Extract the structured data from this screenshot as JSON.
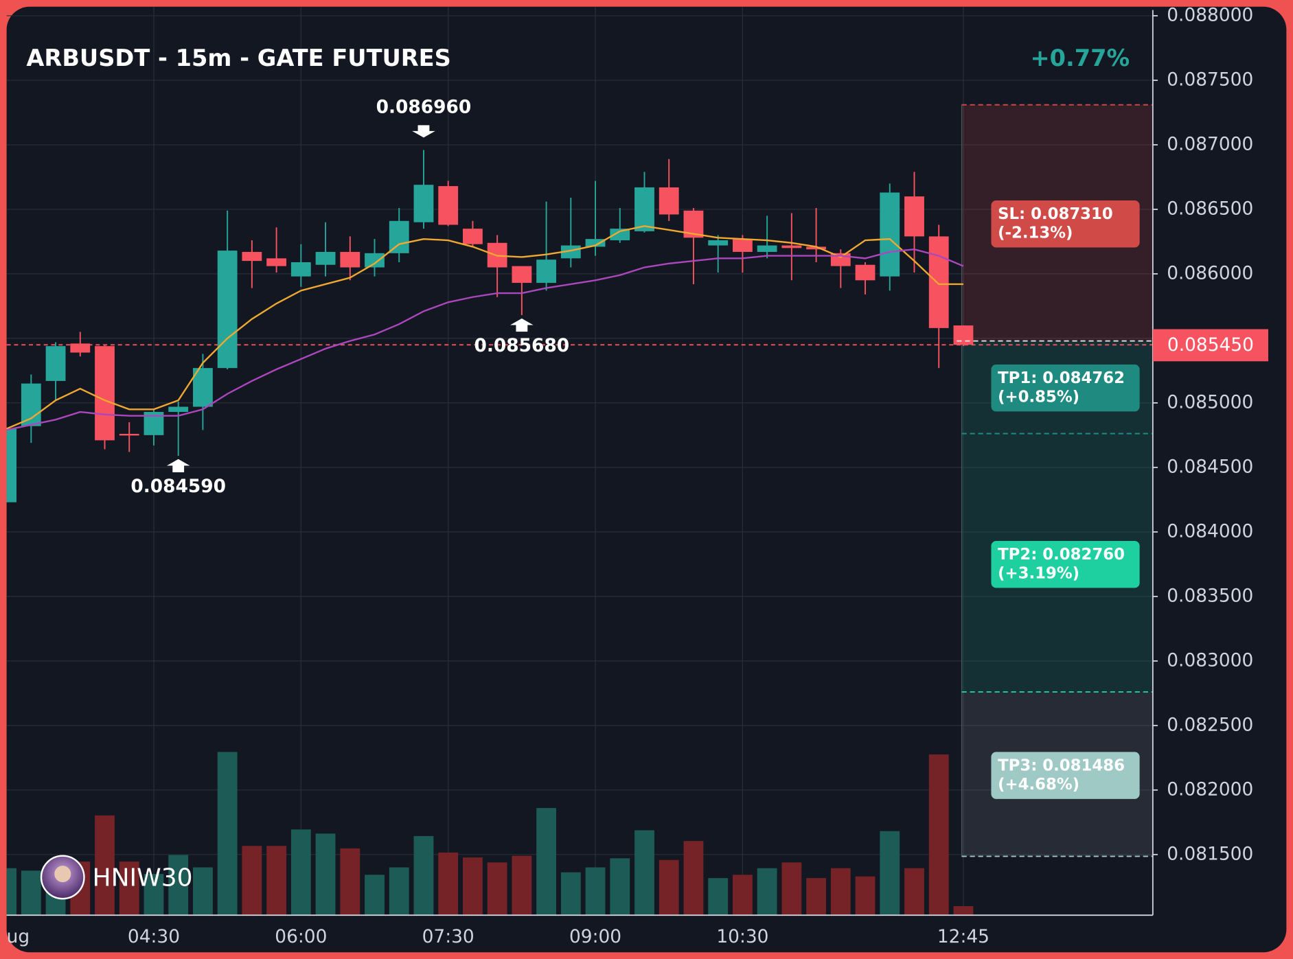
{
  "chart_data": {
    "type": "candlestick",
    "title": "ARBUSDT - 15m - GATE FUTURES",
    "change": "+0.77%",
    "categories": [
      "ug",
      null,
      null,
      null,
      null,
      null,
      "04:30",
      null,
      null,
      null,
      null,
      null,
      "06:00",
      null,
      null,
      null,
      null,
      null,
      "07:30",
      null,
      null,
      null,
      null,
      null,
      "09:00",
      null,
      null,
      null,
      null,
      null,
      "10:30",
      null,
      null,
      null,
      null,
      null,
      null,
      null,
      null,
      "12:45"
    ],
    "open": [
      0.08423,
      0.08482,
      0.08517,
      0.08546,
      0.08544,
      0.08476,
      0.08475,
      0.08493,
      0.08497,
      0.08527,
      0.08617,
      0.08612,
      0.08598,
      0.08607,
      0.08617,
      0.08605,
      0.08616,
      0.0864,
      0.08668,
      0.08635,
      0.08624,
      0.08606,
      0.08593,
      0.08612,
      0.08621,
      0.08626,
      0.08633,
      0.08667,
      0.08649,
      0.08622,
      0.08627,
      0.08617,
      0.08622,
      0.08621,
      0.08616,
      0.08607,
      0.08598,
      0.0866,
      0.08629,
      0.0856
    ],
    "high": [
      0.0848,
      0.08522,
      0.08547,
      0.08555,
      0.08545,
      0.08485,
      0.08495,
      0.08501,
      0.08538,
      0.08649,
      0.08626,
      0.08636,
      0.08623,
      0.0864,
      0.08629,
      0.08627,
      0.08651,
      0.08696,
      0.08672,
      0.08641,
      0.0863,
      0.08606,
      0.08656,
      0.08659,
      0.08672,
      0.08651,
      0.08679,
      0.08689,
      0.08651,
      0.0863,
      0.0863,
      0.08645,
      0.08647,
      0.08651,
      0.08619,
      0.08609,
      0.0867,
      0.08679,
      0.08638,
      0.0856
    ],
    "low": [
      0.08423,
      0.08469,
      0.08502,
      0.08536,
      0.08464,
      0.08462,
      0.08467,
      0.08459,
      0.08479,
      0.08526,
      0.08589,
      0.08601,
      0.0859,
      0.08598,
      0.08595,
      0.08598,
      0.08609,
      0.08635,
      0.08637,
      0.08621,
      0.08582,
      0.08568,
      0.08587,
      0.08605,
      0.08614,
      0.08624,
      0.08632,
      0.08641,
      0.08592,
      0.08601,
      0.08601,
      0.08612,
      0.08595,
      0.08609,
      0.08589,
      0.08584,
      0.08587,
      0.08601,
      0.08527,
      0.08544
    ],
    "close": [
      0.0848,
      0.08515,
      0.08544,
      0.08539,
      0.08471,
      0.08475,
      0.08493,
      0.08497,
      0.08527,
      0.08618,
      0.0861,
      0.08606,
      0.08609,
      0.08617,
      0.08605,
      0.08616,
      0.08641,
      0.08669,
      0.08638,
      0.08623,
      0.08605,
      0.08593,
      0.08611,
      0.08622,
      0.08627,
      0.08635,
      0.08667,
      0.08646,
      0.08628,
      0.08626,
      0.08617,
      0.08622,
      0.0862,
      0.08619,
      0.08606,
      0.08595,
      0.08663,
      0.08629,
      0.08558,
      0.08545
    ],
    "volume": [
      57,
      54,
      58,
      65,
      121,
      65,
      50,
      73,
      58,
      198,
      84,
      84,
      104,
      99,
      81,
      49,
      58,
      96,
      76,
      70,
      64,
      72,
      130,
      52,
      58,
      69,
      103,
      67,
      90,
      45,
      49,
      57,
      64,
      45,
      57,
      47,
      102,
      57,
      195,
      11
    ],
    "up_color": "#26a69a",
    "down_color": "#f7525f",
    "volume_up_color": "#1d5c56",
    "volume_down_color": "#752326",
    "lines": [
      {
        "color": "#f0a830",
        "values": [
          0.0848,
          0.08488,
          0.08502,
          0.08511,
          0.08502,
          0.08495,
          0.08495,
          0.08502,
          0.08531,
          0.0855,
          0.08565,
          0.08577,
          0.08587,
          0.08592,
          0.08597,
          0.08608,
          0.08623,
          0.08627,
          0.08626,
          0.08621,
          0.08614,
          0.08613,
          0.08615,
          0.08618,
          0.08622,
          0.08633,
          0.08637,
          0.08634,
          0.08631,
          0.08628,
          0.08627,
          0.08626,
          0.08624,
          0.08621,
          0.08613,
          0.08626,
          0.08627,
          0.0861,
          0.08592,
          0.08592
        ]
      },
      {
        "color": "#ab47bc",
        "values": [
          0.08479,
          0.08483,
          0.08487,
          0.08493,
          0.08491,
          0.0849,
          0.0849,
          0.0849,
          0.08495,
          0.08507,
          0.08517,
          0.08526,
          0.08534,
          0.08542,
          0.08548,
          0.08553,
          0.08561,
          0.08571,
          0.08578,
          0.08582,
          0.08585,
          0.08585,
          0.08589,
          0.08592,
          0.08595,
          0.08599,
          0.08605,
          0.08608,
          0.0861,
          0.08612,
          0.08612,
          0.08614,
          0.08614,
          0.08614,
          0.08614,
          0.08612,
          0.08617,
          0.08619,
          0.08614,
          0.08606
        ]
      }
    ],
    "ylim": [
      0.08103,
      0.08807
    ],
    "yticks": [
      {
        "value": 0.088,
        "label": "0.088000"
      },
      {
        "value": 0.0875,
        "label": "0.087500"
      },
      {
        "value": 0.087,
        "label": "0.087000"
      },
      {
        "value": 0.0865,
        "label": "0.086500"
      },
      {
        "value": 0.086,
        "label": "0.086000"
      },
      {
        "value": 0.0855,
        "label": "0.085500"
      },
      {
        "value": 0.085,
        "label": "0.085000"
      },
      {
        "value": 0.0845,
        "label": "0.084500"
      },
      {
        "value": 0.084,
        "label": "0.084000"
      },
      {
        "value": 0.0835,
        "label": "0.083500"
      },
      {
        "value": 0.083,
        "label": "0.083000"
      },
      {
        "value": 0.0825,
        "label": "0.082500"
      },
      {
        "value": 0.082,
        "label": "0.082000"
      },
      {
        "value": 0.0815,
        "label": "0.081500"
      }
    ],
    "grid": true,
    "current": {
      "value": 0.08545,
      "label": "0.085450"
    },
    "entry": 0.08548,
    "levels": [
      {
        "label": "SL: 0.087310",
        "sub": "(-2.13%)",
        "value": 0.08731,
        "color": "#d04a48"
      },
      {
        "label": "TP1: 0.084762",
        "sub": "(+0.85%)",
        "value": 0.084762,
        "color": "#1f8a80"
      },
      {
        "label": "TP2: 0.082760",
        "sub": "(+3.19%)",
        "value": 0.08276,
        "color": "#1ecf9f"
      },
      {
        "label": "TP3: 0.081486",
        "sub": "(+4.68%)",
        "value": 0.081486,
        "color": "#9fc9c4"
      }
    ],
    "markers": [
      {
        "label": "0.086960",
        "value": 0.08696,
        "index": 17,
        "position": "above"
      },
      {
        "label": "0.084590",
        "value": 0.08459,
        "index": 7,
        "position": "below"
      },
      {
        "label": "0.085680",
        "value": 0.08568,
        "index": 21,
        "position": "below"
      }
    ],
    "watermark": "HNIW30"
  }
}
